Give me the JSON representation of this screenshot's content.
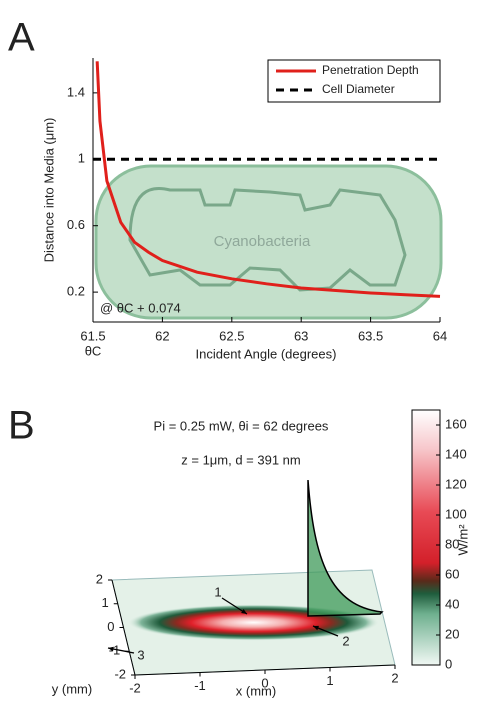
{
  "chart_data": [
    {
      "type": "line",
      "panel_label": "A",
      "xlabel": "Incident Angle (degrees)",
      "ylabel": "Distance into Media (μm)",
      "critical_angle_label": "θC",
      "annotation": "@ θC + 0.074",
      "illustration_label": "Cyanobacteria",
      "xlim": [
        61.5,
        64
      ],
      "ylim": [
        0.02,
        1.61
      ],
      "xticks": [
        61.5,
        62,
        62.5,
        63,
        63.5,
        64
      ],
      "yticks": [
        0.2,
        0.6,
        1,
        1.4
      ],
      "legend": "upper right",
      "series": [
        {
          "name": "Penetration Depth",
          "color": "#e0201b",
          "x": [
            61.53,
            61.55,
            61.6,
            61.7,
            61.8,
            61.9,
            62,
            62.25,
            62.5,
            62.75,
            63,
            63.25,
            63.5,
            63.75,
            64
          ],
          "values": [
            1.59,
            1.23,
            0.87,
            0.62,
            0.5,
            0.44,
            0.39,
            0.32,
            0.28,
            0.25,
            0.225,
            0.21,
            0.195,
            0.184,
            0.174
          ]
        },
        {
          "name": "Cell Diameter",
          "color": "#000000",
          "dash": true,
          "x": [
            61.5,
            64
          ],
          "values": [
            1,
            1
          ]
        }
      ]
    },
    {
      "type": "surface",
      "panel_label": "B",
      "title": "Pi = 0.25 mW, θi = 62 degrees",
      "subtitle": "z = 1μm, d = 391 nm",
      "xlabel": "x (mm)",
      "ylabel": "y (mm)",
      "xlim": [
        -2,
        2
      ],
      "ylim": [
        -2,
        2
      ],
      "xticks": [
        -2,
        -1,
        0,
        1,
        2
      ],
      "yticks": [
        -2,
        -1,
        0,
        1,
        2
      ],
      "colorbar": {
        "label": "W/m²",
        "lim": [
          0,
          170
        ],
        "ticks": [
          0,
          20,
          40,
          60,
          80,
          100,
          120,
          140,
          160
        ]
      },
      "annotations": [
        "1",
        "2",
        "3"
      ]
    }
  ]
}
